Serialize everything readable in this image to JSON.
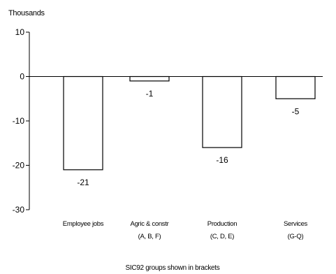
{
  "chart_data": {
    "type": "bar",
    "ylabel": "Thousands",
    "xlabel": "SIC92 groups shown in brackets",
    "ylim": [
      -30,
      10
    ],
    "yticks": [
      10,
      0,
      -10,
      -20,
      -30
    ],
    "categories": [
      {
        "line1": "Employee jobs",
        "line2": ""
      },
      {
        "line1": "Agric & constr",
        "line2": "(A, B, F)"
      },
      {
        "line1": "Production",
        "line2": "(C, D, E)"
      },
      {
        "line1": "Services",
        "line2": "(G-Q)"
      }
    ],
    "values": [
      -21,
      -1,
      -16,
      -5
    ],
    "data_labels": [
      "-21",
      "-1",
      "-16",
      "-5"
    ],
    "bar_fill": "#ffffff",
    "bar_stroke": "#000000",
    "grid": false,
    "legend": "none"
  }
}
